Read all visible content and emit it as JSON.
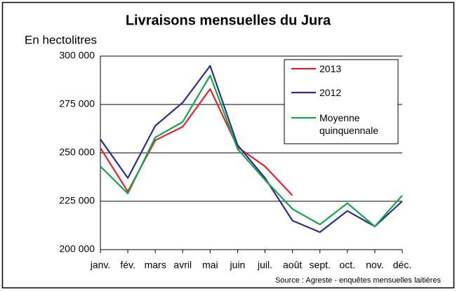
{
  "chart_data": {
    "type": "line",
    "title": "Livraisons mensuelles du Jura",
    "y_label": "En hectolitres",
    "source": "Source : Agreste - enquêtes mensuelles laitières",
    "categories": [
      "janv.",
      "fév.",
      "mars",
      "avril",
      "mai",
      "juin",
      "juil.",
      "août",
      "sept.",
      "oct.",
      "nov.",
      "déc."
    ],
    "series": [
      {
        "name": "2013",
        "color": "#e8202a",
        "values": [
          252500,
          230000,
          256500,
          263500,
          283000,
          253000,
          243000,
          228000,
          null,
          null,
          null,
          null
        ]
      },
      {
        "name": "2012",
        "color": "#2b2f8c",
        "values": [
          257000,
          237000,
          264000,
          276000,
          295000,
          254000,
          237000,
          215000,
          209000,
          220000,
          212000,
          225000
        ]
      },
      {
        "name": "Moyenne quinquennale",
        "color": "#12a84a",
        "values": [
          243000,
          229000,
          258000,
          266000,
          290000,
          252000,
          236000,
          221000,
          213000,
          224000,
          212000,
          228000
        ]
      }
    ],
    "ylim": [
      200000,
      300000
    ],
    "yticks": [
      {
        "value": 200000,
        "label": "200 000"
      },
      {
        "value": 225000,
        "label": "225 000"
      },
      {
        "value": 250000,
        "label": "250 000"
      },
      {
        "value": 275000,
        "label": "275 000"
      },
      {
        "value": 300000,
        "label": "300 000"
      }
    ],
    "grid": true,
    "legend": "upper right"
  }
}
